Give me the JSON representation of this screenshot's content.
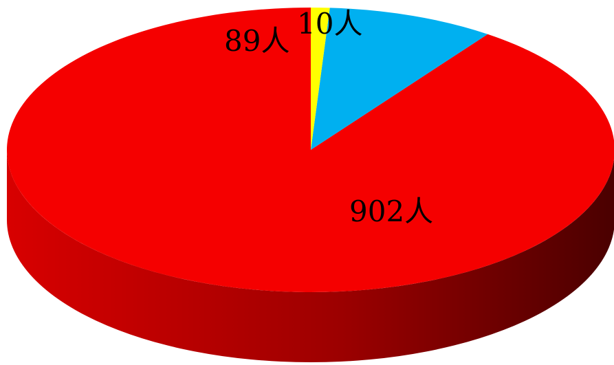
{
  "chart_data": {
    "type": "pie",
    "style": "3d",
    "start": "top",
    "direction": "counterclockwise",
    "slices": [
      {
        "label": "902人",
        "value": 902,
        "color": "#f50000",
        "side_color": "#b80000"
      },
      {
        "label": "89人",
        "value": 89,
        "color": "#00b0f0",
        "side_color": "#0082b0"
      },
      {
        "label": "10人",
        "value": 10,
        "color": "#ffff00",
        "side_color": "#c8c800"
      }
    ]
  }
}
